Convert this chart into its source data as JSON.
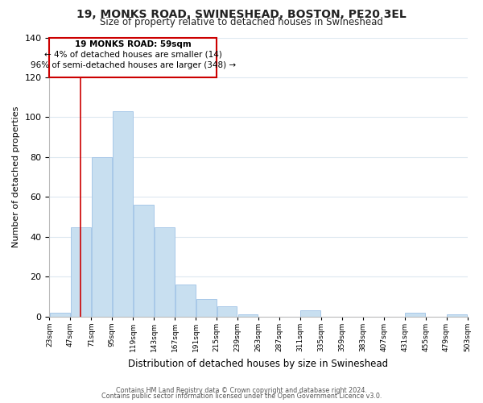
{
  "title": "19, MONKS ROAD, SWINESHEAD, BOSTON, PE20 3EL",
  "subtitle": "Size of property relative to detached houses in Swineshead",
  "xlabel": "Distribution of detached houses by size in Swineshead",
  "ylabel": "Number of detached properties",
  "bar_color": "#c8dff0",
  "bar_edge_color": "#a8c8e8",
  "ylim": [
    0,
    140
  ],
  "yticks": [
    0,
    20,
    40,
    60,
    80,
    100,
    120,
    140
  ],
  "bin_edges": [
    23,
    47,
    71,
    95,
    119,
    143,
    167,
    191,
    215,
    239,
    263,
    287,
    311,
    335,
    359,
    383,
    407,
    431,
    455,
    479,
    503
  ],
  "bar_heights": [
    2,
    45,
    80,
    103,
    56,
    45,
    16,
    9,
    5,
    1,
    0,
    0,
    3,
    0,
    0,
    0,
    0,
    2,
    0,
    1
  ],
  "property_line_x": 59,
  "property_label": "19 MONKS ROAD: 59sqm",
  "annotation_line1": "← 4% of detached houses are smaller (14)",
  "annotation_line2": "96% of semi-detached houses are larger (348) →",
  "footer_line1": "Contains HM Land Registry data © Crown copyright and database right 2024.",
  "footer_line2": "Contains public sector information licensed under the Open Government Licence v3.0.",
  "background_color": "#ffffff",
  "grid_color": "#dde8f0",
  "annotation_rect_color": "#ffffff",
  "annotation_rect_edge": "#cc0000",
  "property_line_color": "#cc0000"
}
